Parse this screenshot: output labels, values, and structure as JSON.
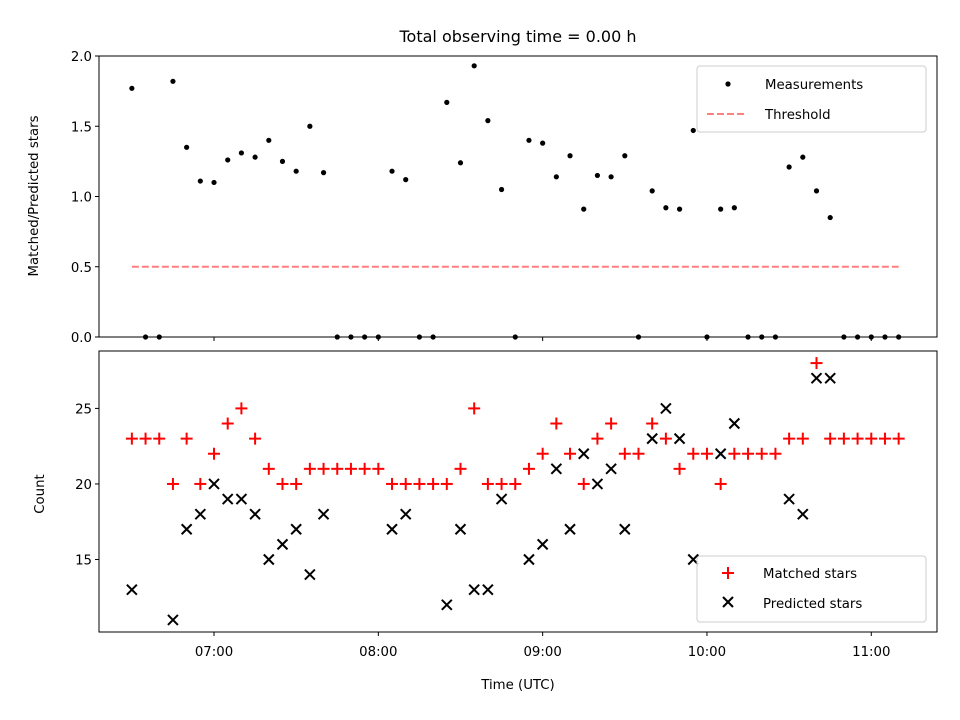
{
  "chart_data": [
    {
      "type": "scatter",
      "title": "Total observing time = 0.00 h",
      "xlabel": "",
      "ylabel": "Matched/Predicted stars",
      "xlim": [
        "06:18",
        "11:24"
      ],
      "ylim": [
        0,
        2.0
      ],
      "yticks": [
        0.0,
        0.5,
        1.0,
        1.5,
        2.0
      ],
      "ytick_labels": [
        "0.0",
        "0.5",
        "1.0",
        "1.5",
        "2.0"
      ],
      "xticks": [
        "07:00",
        "08:00",
        "09:00",
        "10:00",
        "11:00"
      ],
      "grid": false,
      "legend_position": "top-right",
      "series": [
        {
          "name": "Measurements",
          "marker": "dot",
          "color": "#000000",
          "points": [
            [
              "06:30",
              1.77
            ],
            [
              "06:35",
              0.0
            ],
            [
              "06:40",
              0.0
            ],
            [
              "06:45",
              1.82
            ],
            [
              "06:50",
              1.35
            ],
            [
              "06:55",
              1.11
            ],
            [
              "07:00",
              1.1
            ],
            [
              "07:05",
              1.26
            ],
            [
              "07:10",
              1.31
            ],
            [
              "07:15",
              1.28
            ],
            [
              "07:20",
              1.4
            ],
            [
              "07:25",
              1.25
            ],
            [
              "07:30",
              1.18
            ],
            [
              "07:35",
              1.5
            ],
            [
              "07:40",
              1.17
            ],
            [
              "07:45",
              0.0
            ],
            [
              "07:50",
              0.0
            ],
            [
              "07:55",
              0.0
            ],
            [
              "08:00",
              0.0
            ],
            [
              "08:05",
              1.18
            ],
            [
              "08:10",
              1.12
            ],
            [
              "08:15",
              0.0
            ],
            [
              "08:20",
              0.0
            ],
            [
              "08:25",
              1.67
            ],
            [
              "08:30",
              1.24
            ],
            [
              "08:35",
              1.93
            ],
            [
              "08:40",
              1.54
            ],
            [
              "08:45",
              1.05
            ],
            [
              "08:50",
              0.0
            ],
            [
              "08:55",
              1.4
            ],
            [
              "09:00",
              1.38
            ],
            [
              "09:05",
              1.14
            ],
            [
              "09:10",
              1.29
            ],
            [
              "09:15",
              0.91
            ],
            [
              "09:20",
              1.15
            ],
            [
              "09:25",
              1.14
            ],
            [
              "09:30",
              1.29
            ],
            [
              "09:35",
              0.0
            ],
            [
              "09:40",
              1.04
            ],
            [
              "09:45",
              0.92
            ],
            [
              "09:50",
              0.91
            ],
            [
              "09:55",
              1.47
            ],
            [
              "10:00",
              0.0
            ],
            [
              "10:05",
              0.91
            ],
            [
              "10:10",
              0.92
            ],
            [
              "10:15",
              0.0
            ],
            [
              "10:20",
              0.0
            ],
            [
              "10:25",
              0.0
            ],
            [
              "10:30",
              1.21
            ],
            [
              "10:35",
              1.28
            ],
            [
              "10:40",
              1.04
            ],
            [
              "10:45",
              0.85
            ],
            [
              "10:50",
              0.0
            ],
            [
              "10:55",
              0.0
            ],
            [
              "11:00",
              0.0
            ],
            [
              "11:05",
              0.0
            ],
            [
              "11:10",
              0.0
            ]
          ]
        },
        {
          "name": "Threshold",
          "marker": "dashed-line",
          "color": "#ff7f7f",
          "points": [
            [
              "06:30",
              0.5
            ],
            [
              "11:10",
              0.5
            ]
          ]
        }
      ]
    },
    {
      "type": "scatter",
      "title": "",
      "xlabel": "Time (UTC)",
      "ylabel": "Count",
      "xlim": [
        "06:18",
        "11:24"
      ],
      "ylim": [
        10.2,
        28.8
      ],
      "yticks": [
        15,
        20,
        25
      ],
      "ytick_labels": [
        "15",
        "20",
        "25"
      ],
      "xticks": [
        "07:00",
        "08:00",
        "09:00",
        "10:00",
        "11:00"
      ],
      "xtick_labels": [
        "07:00",
        "08:00",
        "09:00",
        "10:00",
        "11:00"
      ],
      "grid": false,
      "legend_position": "bottom-right",
      "series": [
        {
          "name": "Matched stars",
          "marker": "plus",
          "color": "#ff0000",
          "points": [
            [
              "06:30",
              23
            ],
            [
              "06:35",
              23
            ],
            [
              "06:40",
              23
            ],
            [
              "06:45",
              20
            ],
            [
              "06:50",
              23
            ],
            [
              "06:55",
              20
            ],
            [
              "07:00",
              22
            ],
            [
              "07:05",
              24
            ],
            [
              "07:10",
              25
            ],
            [
              "07:15",
              23
            ],
            [
              "07:20",
              21
            ],
            [
              "07:25",
              20
            ],
            [
              "07:30",
              20
            ],
            [
              "07:35",
              21
            ],
            [
              "07:40",
              21
            ],
            [
              "07:45",
              21
            ],
            [
              "07:50",
              21
            ],
            [
              "07:55",
              21
            ],
            [
              "08:00",
              21
            ],
            [
              "08:05",
              20
            ],
            [
              "08:10",
              20
            ],
            [
              "08:15",
              20
            ],
            [
              "08:20",
              20
            ],
            [
              "08:25",
              20
            ],
            [
              "08:30",
              21
            ],
            [
              "08:35",
              25
            ],
            [
              "08:40",
              20
            ],
            [
              "08:45",
              20
            ],
            [
              "08:50",
              20
            ],
            [
              "08:55",
              21
            ],
            [
              "09:00",
              22
            ],
            [
              "09:05",
              24
            ],
            [
              "09:10",
              22
            ],
            [
              "09:15",
              20
            ],
            [
              "09:20",
              23
            ],
            [
              "09:25",
              24
            ],
            [
              "09:30",
              22
            ],
            [
              "09:35",
              22
            ],
            [
              "09:40",
              24
            ],
            [
              "09:45",
              23
            ],
            [
              "09:50",
              21
            ],
            [
              "09:55",
              22
            ],
            [
              "10:00",
              22
            ],
            [
              "10:05",
              20
            ],
            [
              "10:10",
              22
            ],
            [
              "10:15",
              22
            ],
            [
              "10:20",
              22
            ],
            [
              "10:25",
              22
            ],
            [
              "10:30",
              23
            ],
            [
              "10:35",
              23
            ],
            [
              "10:40",
              28
            ],
            [
              "10:45",
              23
            ],
            [
              "10:50",
              23
            ],
            [
              "10:55",
              23
            ],
            [
              "11:00",
              23
            ],
            [
              "11:05",
              23
            ],
            [
              "11:10",
              23
            ]
          ]
        },
        {
          "name": "Predicted stars",
          "marker": "x",
          "color": "#000000",
          "points": [
            [
              "06:30",
              13
            ],
            [
              "06:45",
              11
            ],
            [
              "06:50",
              17
            ],
            [
              "06:55",
              18
            ],
            [
              "07:00",
              20
            ],
            [
              "07:05",
              19
            ],
            [
              "07:10",
              19
            ],
            [
              "07:15",
              18
            ],
            [
              "07:20",
              15
            ],
            [
              "07:25",
              16
            ],
            [
              "07:30",
              17
            ],
            [
              "07:35",
              14
            ],
            [
              "07:40",
              18
            ],
            [
              "08:05",
              17
            ],
            [
              "08:10",
              18
            ],
            [
              "08:25",
              12
            ],
            [
              "08:30",
              17
            ],
            [
              "08:35",
              13
            ],
            [
              "08:40",
              13
            ],
            [
              "08:45",
              19
            ],
            [
              "08:55",
              15
            ],
            [
              "09:00",
              16
            ],
            [
              "09:05",
              21
            ],
            [
              "09:10",
              17
            ],
            [
              "09:15",
              22
            ],
            [
              "09:20",
              20
            ],
            [
              "09:25",
              21
            ],
            [
              "09:30",
              17
            ],
            [
              "09:40",
              23
            ],
            [
              "09:45",
              25
            ],
            [
              "09:50",
              23
            ],
            [
              "09:55",
              15
            ],
            [
              "10:05",
              22
            ],
            [
              "10:10",
              24
            ],
            [
              "10:30",
              19
            ],
            [
              "10:35",
              18
            ],
            [
              "10:40",
              27
            ],
            [
              "10:45",
              27
            ]
          ]
        }
      ]
    }
  ]
}
